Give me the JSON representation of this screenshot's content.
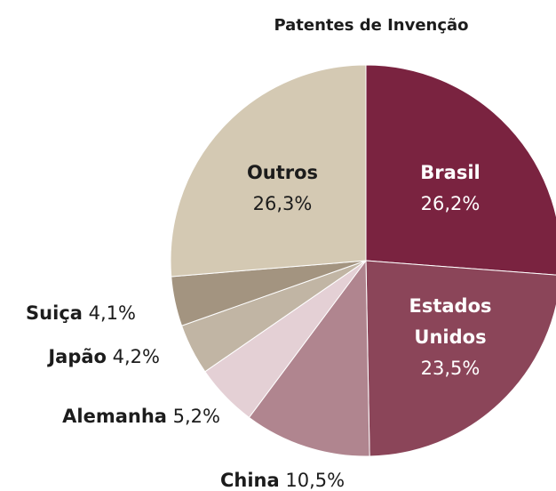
{
  "chart_data": {
    "type": "pie",
    "title": "Patentes de Invenção",
    "categories": [
      "Brasil",
      "Estados Unidos",
      "China",
      "Alemanha",
      "Japão",
      "Suiça",
      "Outros"
    ],
    "values": [
      26.2,
      23.5,
      10.5,
      5.2,
      4.2,
      4.1,
      26.3
    ],
    "value_labels": [
      "26,2%",
      "23,5%",
      "10,5%",
      "5,2%",
      "4,2%",
      "4,1%",
      "26,3%"
    ],
    "colors": [
      "#7a2340",
      "#8b4559",
      "#b0858f",
      "#e4d0d5",
      "#c1b5a4",
      "#a39480",
      "#d4c9b3"
    ]
  }
}
